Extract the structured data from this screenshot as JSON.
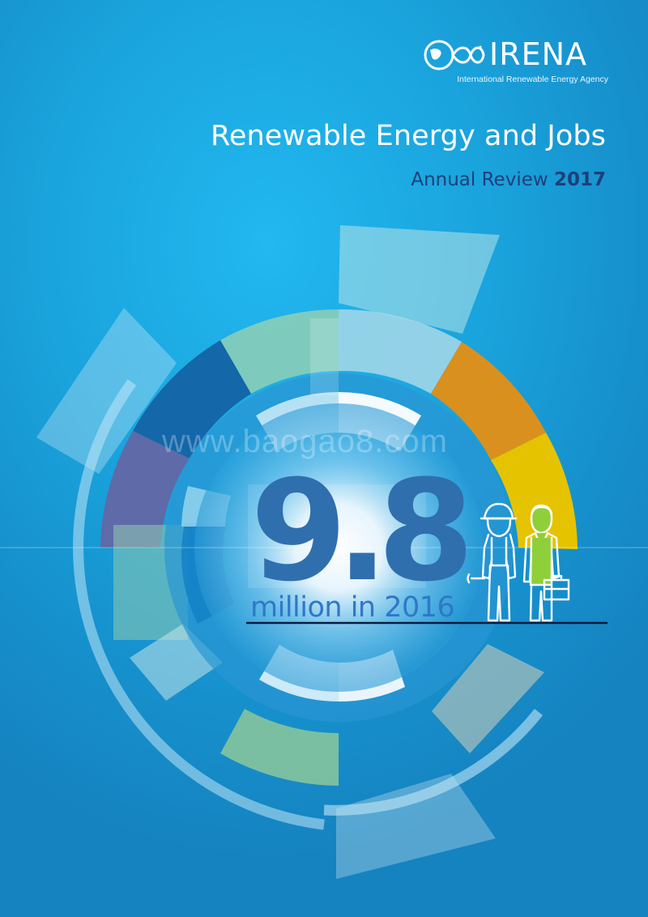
{
  "logo": {
    "name": "IRENA",
    "tagline": "International Renewable Energy Agency",
    "mark_icon": "globe-infinity-icon"
  },
  "report": {
    "title": "Renewable Energy and Jobs",
    "subtitle": "Annual Review",
    "year": "2017"
  },
  "headline": {
    "figure": "9.8",
    "caption": "million in 2016"
  },
  "watermark": "www.baogao8.com",
  "illustration": {
    "icons": [
      "female-worker-icon",
      "businessman-icon",
      "wrench-icon",
      "briefcase-icon"
    ]
  },
  "colors": {
    "background": "#1a9fd9",
    "title_dark": "#1e3f7a",
    "figure": "#2f6fae",
    "orange": "#d9901f",
    "yellow": "#e5c300",
    "purple": "#5f6aa8",
    "dark_blue": "#1467a8",
    "green": "#7ab890"
  }
}
